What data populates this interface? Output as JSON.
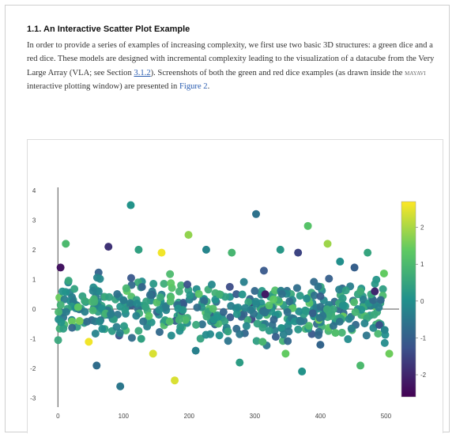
{
  "section": {
    "number": "1.1.",
    "title": "An Interactive Scatter Plot Example"
  },
  "paragraph": {
    "part1": "In order to provide a series of examples of increasing complexity, we first use two basic 3D structures: a green dice and a red dice. These models are designed with incremental complexity leading to the visualization of a datacube from the Very Large Array (VLA; see Section ",
    "section_link": "3.1.2",
    "part2": "). Screenshots of both the green and red dice examples (as drawn inside the ",
    "software": "mayavi",
    "part3": " interactive plotting window) are presented in ",
    "figure_ref": "Figure 2",
    "part4": "."
  },
  "chart_data": {
    "type": "scatter",
    "xlim": [
      -10,
      520
    ],
    "ylim": [
      -3.3,
      4.1
    ],
    "x_ticks": [
      0,
      100,
      200,
      300,
      400,
      500
    ],
    "y_ticks": [
      -3,
      -2,
      -1,
      0,
      1,
      2,
      3,
      4
    ],
    "colorbar": {
      "colormap": "viridis",
      "range": [
        -2.6,
        2.7
      ],
      "ticks": [
        -2,
        -1,
        0,
        1,
        2
      ]
    },
    "axis_lines": {
      "x_zero_line": true,
      "y_zero_line": true
    },
    "points": [
      [
        111,
        3.5,
        0.1
      ],
      [
        302,
        3.2,
        -0.6
      ],
      [
        381,
        2.8,
        1.2
      ],
      [
        199,
        2.5,
        1.8
      ],
      [
        411,
        2.2,
        1.9
      ],
      [
        12,
        2.2,
        1.0
      ],
      [
        77,
        2.1,
        -1.8
      ],
      [
        123,
        2.0,
        0.4
      ],
      [
        158,
        1.9,
        2.6
      ],
      [
        226,
        2.0,
        -0.2
      ],
      [
        265,
        1.9,
        0.9
      ],
      [
        339,
        2.0,
        0.2
      ],
      [
        366,
        1.9,
        -1.5
      ],
      [
        472,
        1.9,
        0.5
      ],
      [
        4,
        1.4,
        -2.3
      ],
      [
        430,
        1.6,
        0.0
      ],
      [
        452,
        1.4,
        -1.0
      ],
      [
        497,
        1.2,
        1.4
      ],
      [
        483,
        0.6,
        -2.0
      ],
      [
        316,
        0.5,
        -2.2
      ],
      [
        246,
        0.5,
        0.8
      ],
      [
        172,
        0.4,
        1.1
      ],
      [
        100,
        0.3,
        -0.4
      ],
      [
        33,
        -0.4,
        1.6
      ],
      [
        47,
        -1.1,
        2.6
      ],
      [
        95,
        -2.6,
        -0.5
      ],
      [
        145,
        -1.5,
        2.4
      ],
      [
        178,
        -2.4,
        2.4
      ],
      [
        277,
        -1.8,
        0.3
      ],
      [
        347,
        -1.5,
        1.4
      ],
      [
        400,
        -1.2,
        -0.9
      ],
      [
        461,
        -1.9,
        1.0
      ],
      [
        505,
        -1.5,
        1.5
      ],
      [
        59,
        -1.9,
        -0.7
      ],
      [
        127,
        -1.0,
        0.4
      ],
      [
        210,
        -1.4,
        -0.3
      ],
      [
        312,
        -1.1,
        0.9
      ],
      [
        372,
        -2.1,
        0.1
      ],
      [
        423,
        -0.8,
        1.1
      ],
      [
        498,
        -0.7,
        -0.2
      ]
    ]
  }
}
